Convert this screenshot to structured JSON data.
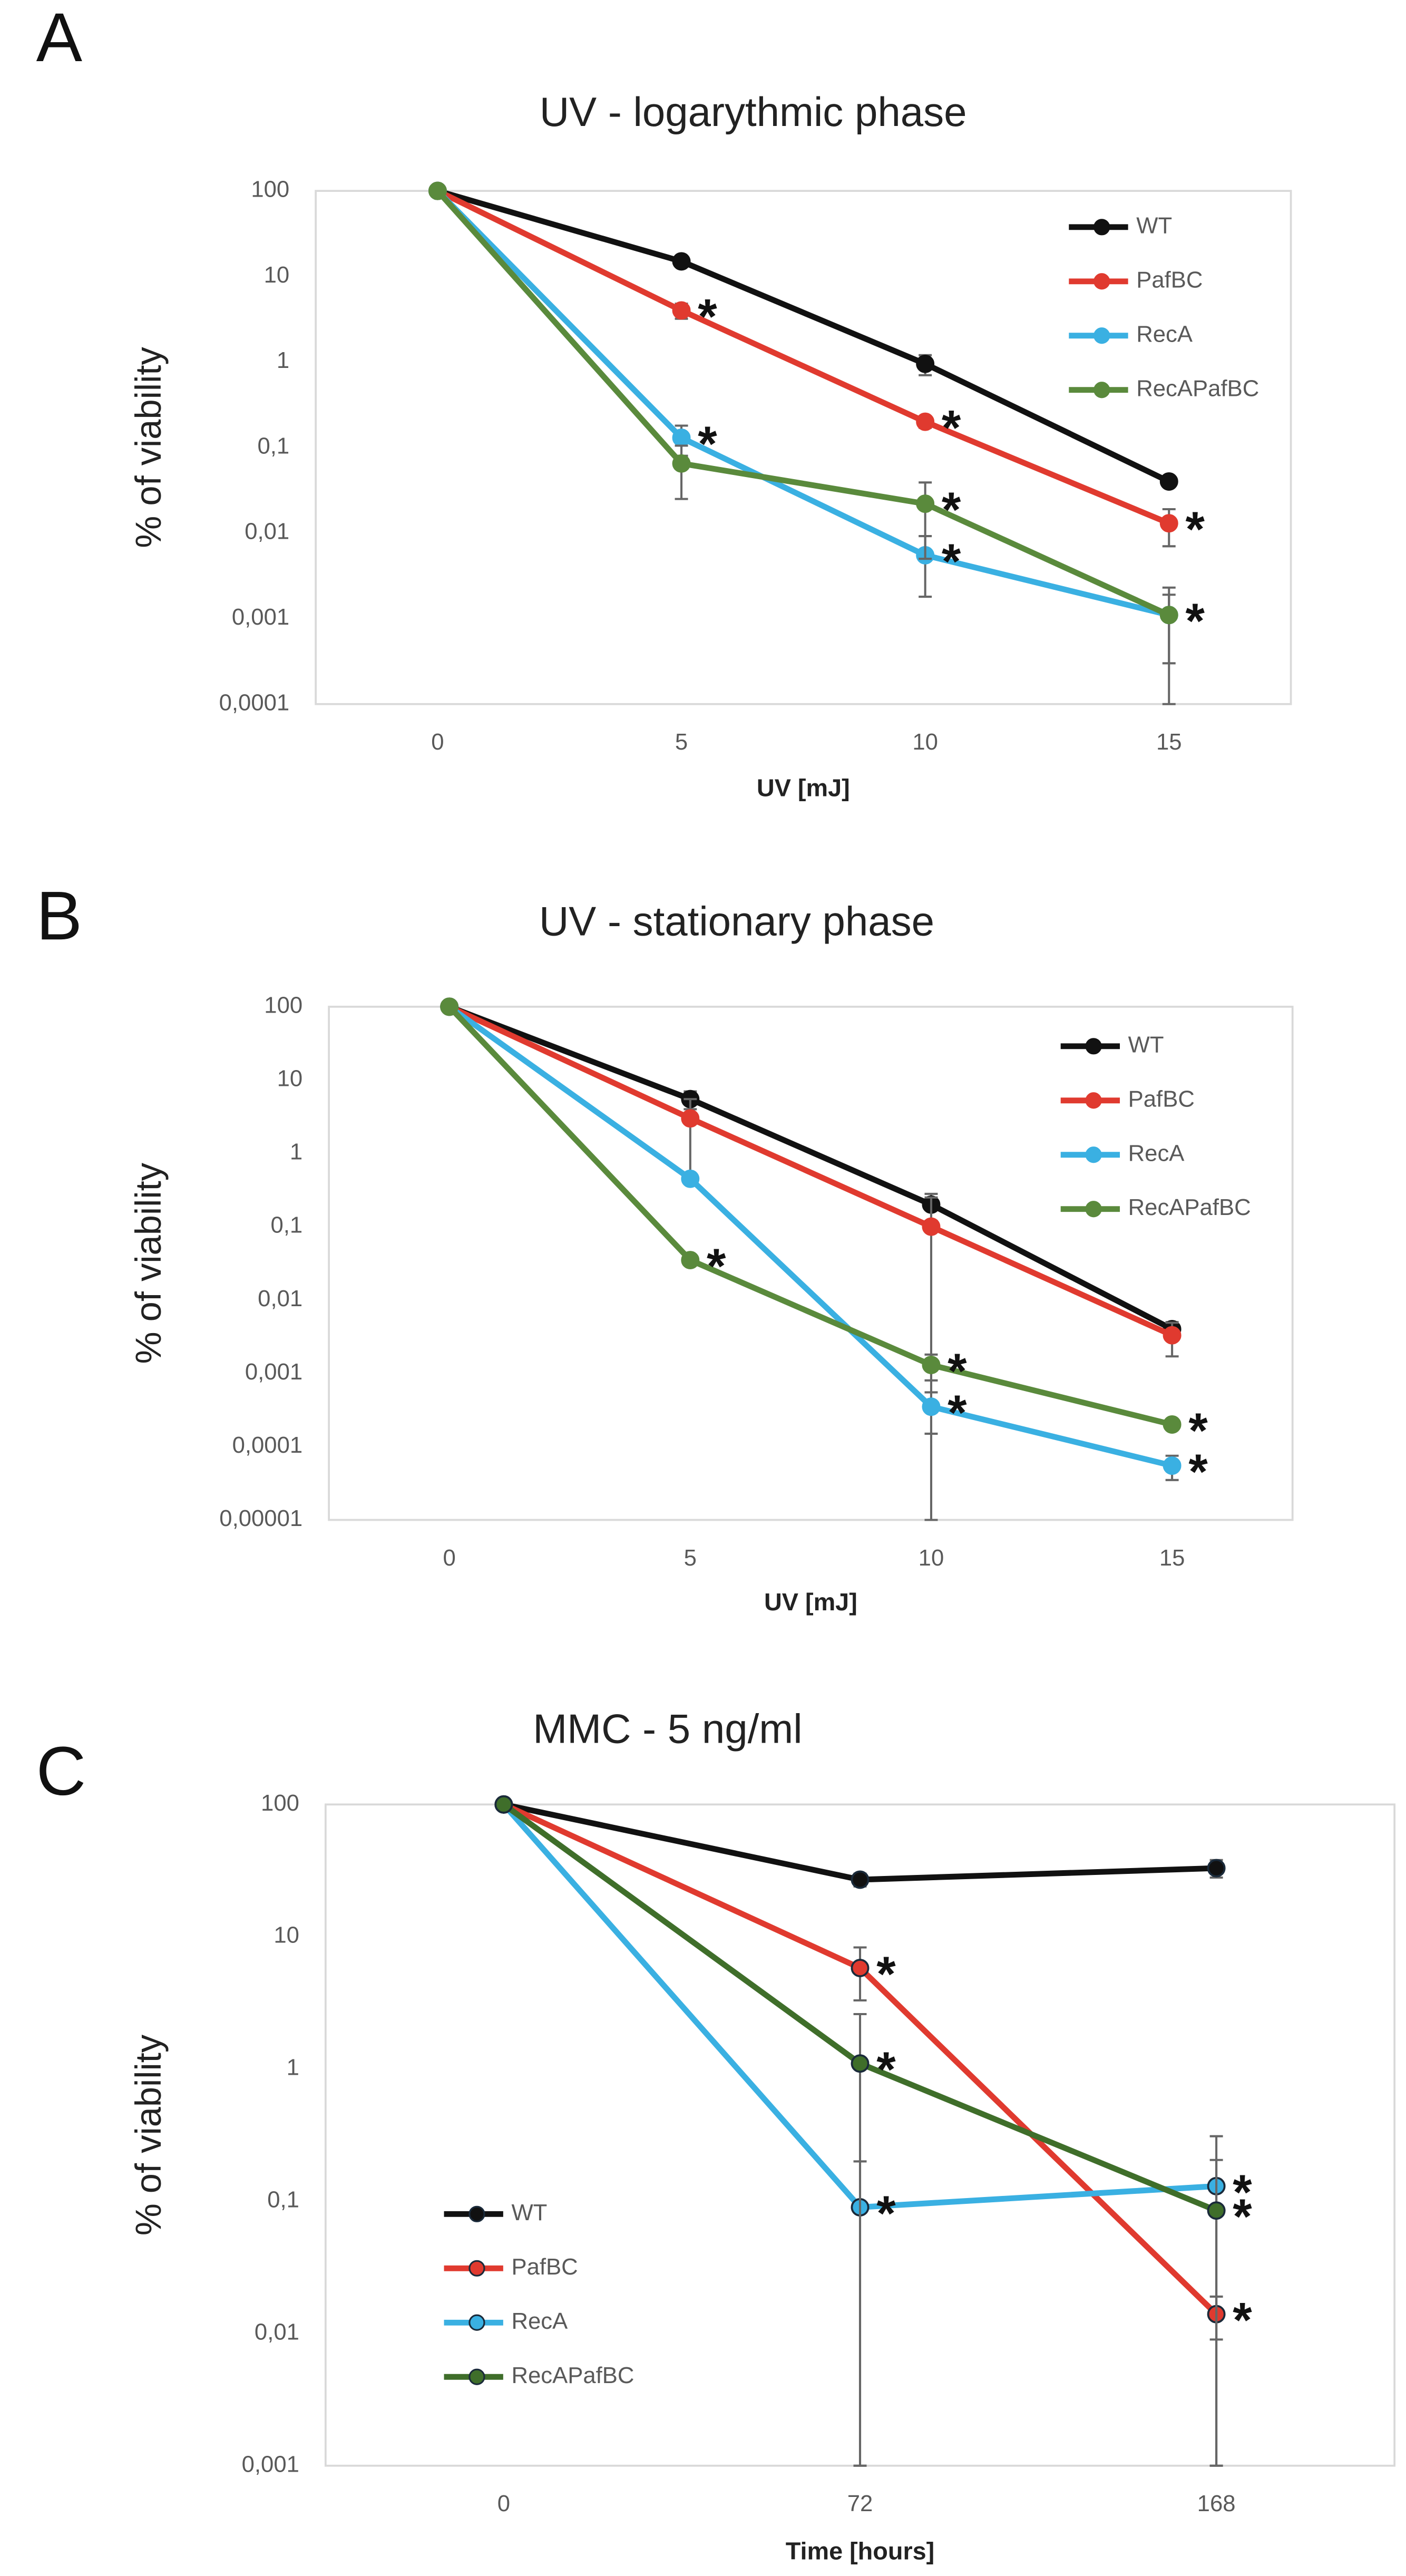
{
  "chart_data": [
    {
      "type": "line",
      "panel": "A",
      "title": "UV - logarythmic phase",
      "x_label": "UV [mJ]",
      "y_label": "% of viability",
      "categories": [
        "0",
        "5",
        "10",
        "15"
      ],
      "log_scale": true,
      "grid": false,
      "legend": "upper right",
      "ylim": [
        0.0001,
        100
      ],
      "yticks": [
        {
          "value": 0.0001,
          "label": "0,0001"
        },
        {
          "value": 0.001,
          "label": "0,001"
        },
        {
          "value": 0.01,
          "label": "0,01"
        },
        {
          "value": 0.1,
          "label": "0,1"
        },
        1,
        10,
        100
      ],
      "series": [
        {
          "name": "WT",
          "color": "#111111",
          "values": [
            100,
            15,
            0.95,
            0.04
          ],
          "errors": [
            0,
            2,
            0.25,
            0.004
          ],
          "significance": [
            null,
            null,
            null,
            null
          ]
        },
        {
          "name": "PafBC",
          "color": "#e03a2f",
          "values": [
            100,
            4,
            0.2,
            0.013
          ],
          "errors": [
            0,
            0.8,
            0.03,
            0.006
          ],
          "significance": [
            null,
            "*",
            "*",
            "*"
          ]
        },
        {
          "name": "RecA",
          "color": "#3ab0e2",
          "values": [
            100,
            0.13,
            0.0055,
            0.0011
          ],
          "errors": [
            0,
            0.05,
            0.0037,
            0.0008
          ],
          "significance": [
            null,
            "*",
            "*",
            null
          ]
        },
        {
          "name": "RecAPafBC",
          "color": "#5a8a3c",
          "values": [
            100,
            0.065,
            0.022,
            0.0011
          ],
          "errors": [
            0,
            0.04,
            0.017,
            0.0012
          ],
          "significance": [
            null,
            null,
            "*",
            "*"
          ]
        }
      ]
    },
    {
      "type": "line",
      "panel": "B",
      "title": "UV - stationary phase",
      "x_label": "UV [mJ]",
      "y_label": "% of viability",
      "categories": [
        "0",
        "5",
        "10",
        "15"
      ],
      "log_scale": true,
      "grid": false,
      "legend": "upper right",
      "ylim": [
        1e-05,
        100
      ],
      "yticks": [
        {
          "value": 1e-05,
          "label": "0,00001"
        },
        {
          "value": 0.0001,
          "label": "0,0001"
        },
        {
          "value": 0.001,
          "label": "0,001"
        },
        {
          "value": 0.01,
          "label": "0,01"
        },
        {
          "value": 0.1,
          "label": "0,1"
        },
        1,
        10,
        100
      ],
      "series": [
        {
          "name": "WT",
          "color": "#111111",
          "values": [
            100,
            5.5,
            0.2,
            0.004
          ],
          "errors": [
            0,
            1.5,
            0.08,
            0.001
          ],
          "significance": [
            null,
            null,
            null,
            null
          ]
        },
        {
          "name": "PafBC",
          "color": "#e03a2f",
          "values": [
            100,
            3,
            0.1,
            0.0033
          ],
          "errors": [
            0,
            2.5,
            0.15,
            0.0016
          ],
          "significance": [
            null,
            null,
            null,
            null
          ]
        },
        {
          "name": "RecA",
          "color": "#3ab0e2",
          "values": [
            100,
            0.45,
            0.00035,
            5.5e-05
          ],
          "errors": [
            0,
            0.05,
            0.0002,
            2e-05
          ],
          "significance": [
            null,
            null,
            "*",
            "*"
          ]
        },
        {
          "name": "RecAPafBC",
          "color": "#5a8a3c",
          "values": [
            100,
            0.035,
            0.0013,
            0.0002
          ],
          "errors": [
            0,
            0.003,
            0.0005,
            2e-05
          ],
          "significance": [
            null,
            "*",
            "*",
            "*"
          ]
        }
      ]
    },
    {
      "type": "line",
      "panel": "C",
      "title": "MMC - 5 ng/ml",
      "x_label": "Time [hours]",
      "y_label": "% of viability",
      "categories": [
        "0",
        "72",
        "168"
      ],
      "log_scale": true,
      "grid": false,
      "legend": "lower left",
      "ylim": [
        0.001,
        100
      ],
      "yticks": [
        {
          "value": 0.001,
          "label": "0,001"
        },
        {
          "value": 0.01,
          "label": "0,01"
        },
        {
          "value": 0.1,
          "label": "0,1"
        },
        1,
        10,
        100
      ],
      "series": [
        {
          "name": "WT",
          "color": "#111111",
          "values": [
            100,
            27,
            33
          ],
          "errors": [
            0,
            3,
            5
          ],
          "significance": [
            null,
            null,
            null
          ]
        },
        {
          "name": "PafBC",
          "color": "#e03a2f",
          "values": [
            100,
            5.8,
            0.014
          ],
          "errors": [
            0,
            2.5,
            0.005
          ],
          "significance": [
            null,
            "*",
            "*"
          ]
        },
        {
          "name": "RecA",
          "color": "#3ab0e2",
          "values": [
            100,
            0.09,
            0.13
          ],
          "errors": [
            0,
            0.11,
            0.18
          ],
          "significance": [
            null,
            "*",
            "*"
          ]
        },
        {
          "name": "RecAPafBC",
          "color": "#3f6e2a",
          "values": [
            100,
            1.1,
            0.085
          ],
          "errors": [
            0,
            1.5,
            0.12
          ],
          "significance": [
            null,
            "*",
            "*"
          ]
        }
      ]
    }
  ]
}
